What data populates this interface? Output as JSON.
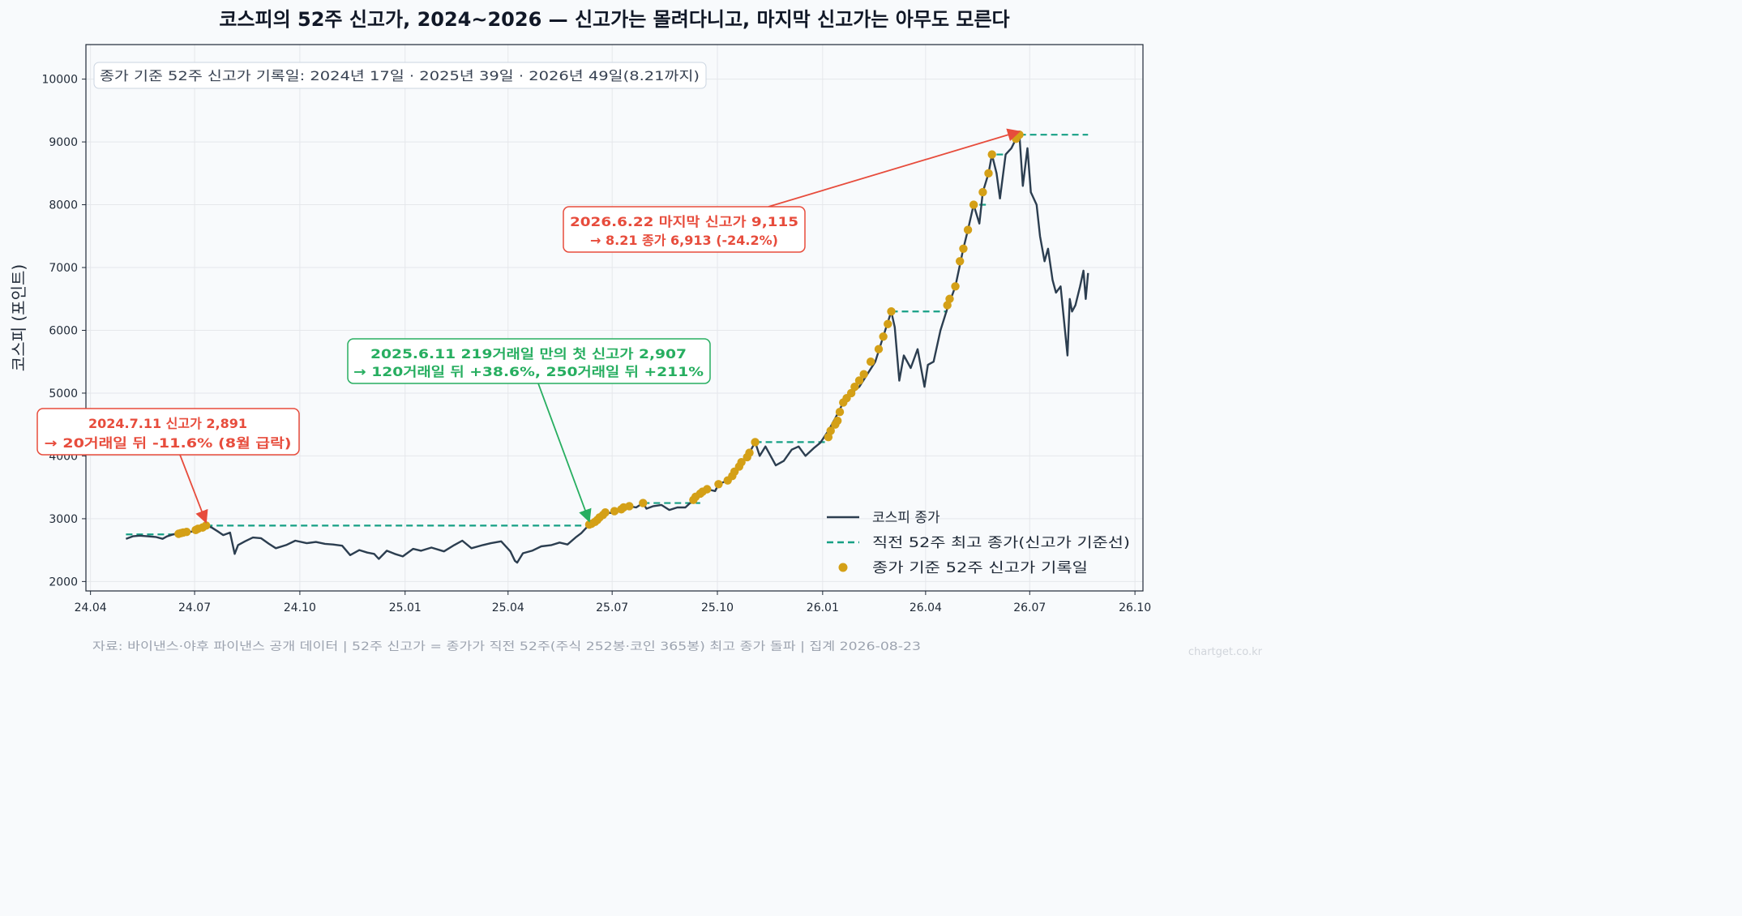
{
  "chart_data": {
    "type": "line",
    "title": "코스피의 52주 신고가, 2024~2026 — 신고가는 몰려다니고, 마지막 신고가는 아무도 모른다",
    "ylabel": "코스피 (포인트)",
    "xlabel": "",
    "info_box": "종가 기준 52주 신고가 기록일: 2024년 17일 · 2025년 39일 · 2026년 49일(8.21까지)",
    "footer": "자료: 바이낸스·야후 파이낸스 공개 데이터 | 52주 신고가 = 종가가 직전 52주(주식 252봉·코인 365봉) 최고 종가 돌파 | 집계 2026-08-23",
    "watermark": "chartget.co.kr",
    "ylim": [
      1850,
      10550
    ],
    "xlim": [
      "2024-03-28",
      "2026-10-08"
    ],
    "grid": true,
    "legend_position": "lower-right",
    "y_ticks": [
      2000,
      3000,
      4000,
      5000,
      6000,
      7000,
      8000,
      9000,
      10000
    ],
    "x_ticks": [
      {
        "date": "2024-04-01",
        "label": "24.04"
      },
      {
        "date": "2024-07-01",
        "label": "24.07"
      },
      {
        "date": "2024-10-01",
        "label": "24.10"
      },
      {
        "date": "2025-01-01",
        "label": "25.01"
      },
      {
        "date": "2025-04-01",
        "label": "25.04"
      },
      {
        "date": "2025-07-01",
        "label": "25.07"
      },
      {
        "date": "2025-10-01",
        "label": "25.10"
      },
      {
        "date": "2026-01-01",
        "label": "26.01"
      },
      {
        "date": "2026-04-01",
        "label": "26.04"
      },
      {
        "date": "2026-07-01",
        "label": "26.07"
      },
      {
        "date": "2026-10-01",
        "label": "26.10"
      }
    ],
    "colors": {
      "close": "#2c3e50",
      "threshold": "#16a085",
      "highs": "#d4a017",
      "red": "#e74c3c",
      "green": "#27ae60",
      "grid": "#e5e7eb"
    },
    "series": [
      {
        "name": "코스피 종가",
        "points": [
          [
            "2024-05-02",
            2680
          ],
          [
            "2024-05-08",
            2720
          ],
          [
            "2024-05-14",
            2730
          ],
          [
            "2024-05-21",
            2720
          ],
          [
            "2024-05-28",
            2710
          ],
          [
            "2024-06-03",
            2680
          ],
          [
            "2024-06-07",
            2720
          ],
          [
            "2024-06-12",
            2750
          ],
          [
            "2024-06-17",
            2770
          ],
          [
            "2024-06-21",
            2780
          ],
          [
            "2024-06-26",
            2790
          ],
          [
            "2024-07-01",
            2800
          ],
          [
            "2024-07-04",
            2830
          ],
          [
            "2024-07-08",
            2860
          ],
          [
            "2024-07-11",
            2891
          ],
          [
            "2024-07-16",
            2860
          ],
          [
            "2024-07-22",
            2790
          ],
          [
            "2024-07-26",
            2740
          ],
          [
            "2024-08-01",
            2780
          ],
          [
            "2024-08-05",
            2440
          ],
          [
            "2024-08-08",
            2580
          ],
          [
            "2024-08-14",
            2640
          ],
          [
            "2024-08-21",
            2700
          ],
          [
            "2024-08-28",
            2690
          ],
          [
            "2024-09-04",
            2600
          ],
          [
            "2024-09-10",
            2530
          ],
          [
            "2024-09-19",
            2580
          ],
          [
            "2024-09-27",
            2650
          ],
          [
            "2024-10-07",
            2610
          ],
          [
            "2024-10-15",
            2630
          ],
          [
            "2024-10-23",
            2600
          ],
          [
            "2024-10-30",
            2590
          ],
          [
            "2024-11-07",
            2570
          ],
          [
            "2024-11-14",
            2420
          ],
          [
            "2024-11-22",
            2500
          ],
          [
            "2024-11-29",
            2460
          ],
          [
            "2024-12-05",
            2440
          ],
          [
            "2024-12-09",
            2360
          ],
          [
            "2024-12-16",
            2490
          ],
          [
            "2024-12-23",
            2440
          ],
          [
            "2024-12-30",
            2400
          ],
          [
            "2025-01-08",
            2520
          ],
          [
            "2025-01-15",
            2490
          ],
          [
            "2025-01-24",
            2540
          ],
          [
            "2025-02-04",
            2480
          ],
          [
            "2025-02-13",
            2580
          ],
          [
            "2025-02-20",
            2650
          ],
          [
            "2025-02-28",
            2530
          ],
          [
            "2025-03-10",
            2580
          ],
          [
            "2025-03-17",
            2610
          ],
          [
            "2025-03-26",
            2640
          ],
          [
            "2025-04-03",
            2480
          ],
          [
            "2025-04-07",
            2330
          ],
          [
            "2025-04-09",
            2300
          ],
          [
            "2025-04-14",
            2450
          ],
          [
            "2025-04-22",
            2490
          ],
          [
            "2025-04-30",
            2560
          ],
          [
            "2025-05-09",
            2580
          ],
          [
            "2025-05-16",
            2620
          ],
          [
            "2025-05-23",
            2590
          ],
          [
            "2025-05-30",
            2700
          ],
          [
            "2025-06-04",
            2770
          ],
          [
            "2025-06-11",
            2907
          ],
          [
            "2025-06-16",
            2950
          ],
          [
            "2025-06-20",
            3020
          ],
          [
            "2025-06-25",
            3100
          ],
          [
            "2025-07-01",
            3090
          ],
          [
            "2025-07-07",
            3120
          ],
          [
            "2025-07-11",
            3180
          ],
          [
            "2025-07-16",
            3200
          ],
          [
            "2025-07-22",
            3180
          ],
          [
            "2025-07-28",
            3250
          ],
          [
            "2025-07-31",
            3160
          ],
          [
            "2025-08-06",
            3200
          ],
          [
            "2025-08-13",
            3220
          ],
          [
            "2025-08-20",
            3140
          ],
          [
            "2025-08-27",
            3180
          ],
          [
            "2025-09-03",
            3180
          ],
          [
            "2025-09-10",
            3300
          ],
          [
            "2025-09-16",
            3400
          ],
          [
            "2025-09-22",
            3470
          ],
          [
            "2025-09-29",
            3440
          ],
          [
            "2025-10-02",
            3550
          ],
          [
            "2025-10-10",
            3610
          ],
          [
            "2025-10-16",
            3750
          ],
          [
            "2025-10-22",
            3900
          ],
          [
            "2025-10-29",
            4050
          ],
          [
            "2025-11-03",
            4220
          ],
          [
            "2025-11-07",
            4000
          ],
          [
            "2025-11-12",
            4150
          ],
          [
            "2025-11-18",
            3950
          ],
          [
            "2025-11-21",
            3850
          ],
          [
            "2025-11-28",
            3920
          ],
          [
            "2025-12-05",
            4100
          ],
          [
            "2025-12-11",
            4150
          ],
          [
            "2025-12-17",
            4000
          ],
          [
            "2025-12-24",
            4120
          ],
          [
            "2025-12-30",
            4210
          ],
          [
            "2026-01-06",
            4400
          ],
          [
            "2026-01-12",
            4600
          ],
          [
            "2026-01-19",
            4850
          ],
          [
            "2026-01-26",
            5000
          ],
          [
            "2026-02-02",
            5100
          ],
          [
            "2026-02-09",
            5300
          ],
          [
            "2026-02-16",
            5500
          ],
          [
            "2026-02-23",
            5900
          ],
          [
            "2026-03-02",
            6300
          ],
          [
            "2026-03-05",
            6050
          ],
          [
            "2026-03-09",
            5200
          ],
          [
            "2026-03-13",
            5600
          ],
          [
            "2026-03-19",
            5400
          ],
          [
            "2026-03-25",
            5700
          ],
          [
            "2026-03-31",
            5100
          ],
          [
            "2026-04-03",
            5450
          ],
          [
            "2026-04-08",
            5500
          ],
          [
            "2026-04-14",
            6000
          ],
          [
            "2026-04-20",
            6350
          ],
          [
            "2026-04-27",
            6700
          ],
          [
            "2026-05-04",
            7300
          ],
          [
            "2026-05-08",
            7600
          ],
          [
            "2026-05-13",
            8000
          ],
          [
            "2026-05-18",
            7700
          ],
          [
            "2026-05-21",
            8200
          ],
          [
            "2026-05-26",
            8500
          ],
          [
            "2026-05-29",
            8800
          ],
          [
            "2026-06-02",
            8500
          ],
          [
            "2026-06-05",
            8100
          ],
          [
            "2026-06-10",
            8800
          ],
          [
            "2026-06-15",
            8900
          ],
          [
            "2026-06-19",
            9050
          ],
          [
            "2026-06-22",
            9115
          ],
          [
            "2026-06-25",
            8300
          ],
          [
            "2026-06-29",
            8900
          ],
          [
            "2026-07-02",
            8200
          ],
          [
            "2026-07-07",
            8000
          ],
          [
            "2026-07-10",
            7500
          ],
          [
            "2026-07-14",
            7100
          ],
          [
            "2026-07-17",
            7300
          ],
          [
            "2026-07-21",
            6800
          ],
          [
            "2026-07-24",
            6600
          ],
          [
            "2026-07-28",
            6700
          ],
          [
            "2026-08-03",
            5600
          ],
          [
            "2026-08-05",
            6500
          ],
          [
            "2026-08-07",
            6300
          ],
          [
            "2026-08-10",
            6400
          ],
          [
            "2026-08-14",
            6700
          ],
          [
            "2026-08-17",
            6950
          ],
          [
            "2026-08-19",
            6500
          ],
          [
            "2026-08-21",
            6913
          ]
        ]
      },
      {
        "name": "직전 52주 최고 종가(신고가 기준선)",
        "style": "dashed",
        "segments": [
          [
            [
              "2024-05-02",
              2750
            ],
            [
              "2024-06-17",
              2750
            ]
          ],
          [
            [
              "2024-07-11",
              2891
            ],
            [
              "2025-06-11",
              2891
            ]
          ],
          [
            [
              "2025-07-28",
              3250
            ],
            [
              "2025-09-16",
              3250
            ]
          ],
          [
            [
              "2025-11-03",
              4220
            ],
            [
              "2026-01-06",
              4220
            ]
          ],
          [
            [
              "2026-03-02",
              6300
            ],
            [
              "2026-04-20",
              6300
            ]
          ],
          [
            [
              "2026-05-18",
              8000
            ],
            [
              "2026-05-26",
              8000
            ]
          ],
          [
            [
              "2026-06-02",
              8800
            ],
            [
              "2026-06-10",
              8800
            ]
          ],
          [
            [
              "2026-06-22",
              9115
            ],
            [
              "2026-08-21",
              9115
            ]
          ]
        ]
      },
      {
        "name": "종가 기준 52주 신고가 기록일",
        "type": "scatter",
        "points": [
          [
            "2024-06-17",
            2760
          ],
          [
            "2024-06-19",
            2770
          ],
          [
            "2024-06-21",
            2780
          ],
          [
            "2024-06-24",
            2790
          ],
          [
            "2024-07-02",
            2820
          ],
          [
            "2024-07-04",
            2840
          ],
          [
            "2024-07-08",
            2860
          ],
          [
            "2024-07-11",
            2891
          ],
          [
            "2025-06-11",
            2907
          ],
          [
            "2025-06-13",
            2920
          ],
          [
            "2025-06-16",
            2950
          ],
          [
            "2025-06-18",
            2980
          ],
          [
            "2025-06-20",
            3020
          ],
          [
            "2025-06-23",
            3060
          ],
          [
            "2025-06-25",
            3100
          ],
          [
            "2025-07-03",
            3120
          ],
          [
            "2025-07-09",
            3150
          ],
          [
            "2025-07-11",
            3180
          ],
          [
            "2025-07-16",
            3200
          ],
          [
            "2025-07-28",
            3250
          ],
          [
            "2025-09-10",
            3300
          ],
          [
            "2025-09-12",
            3350
          ],
          [
            "2025-09-16",
            3400
          ],
          [
            "2025-09-18",
            3430
          ],
          [
            "2025-09-22",
            3470
          ],
          [
            "2025-10-02",
            3550
          ],
          [
            "2025-10-10",
            3610
          ],
          [
            "2025-10-14",
            3680
          ],
          [
            "2025-10-16",
            3750
          ],
          [
            "2025-10-20",
            3830
          ],
          [
            "2025-10-22",
            3900
          ],
          [
            "2025-10-27",
            3980
          ],
          [
            "2025-10-29",
            4050
          ],
          [
            "2025-11-03",
            4220
          ],
          [
            "2026-01-06",
            4300
          ],
          [
            "2026-01-08",
            4400
          ],
          [
            "2026-01-12",
            4500
          ],
          [
            "2026-01-14",
            4560
          ],
          [
            "2026-01-16",
            4700
          ],
          [
            "2026-01-19",
            4850
          ],
          [
            "2026-01-22",
            4920
          ],
          [
            "2026-01-26",
            5000
          ],
          [
            "2026-01-29",
            5100
          ],
          [
            "2026-02-02",
            5200
          ],
          [
            "2026-02-06",
            5300
          ],
          [
            "2026-02-12",
            5500
          ],
          [
            "2026-02-19",
            5700
          ],
          [
            "2026-02-23",
            5900
          ],
          [
            "2026-02-27",
            6100
          ],
          [
            "2026-03-02",
            6300
          ],
          [
            "2026-04-20",
            6400
          ],
          [
            "2026-04-22",
            6500
          ],
          [
            "2026-04-27",
            6700
          ],
          [
            "2026-05-01",
            7100
          ],
          [
            "2026-05-04",
            7300
          ],
          [
            "2026-05-08",
            7600
          ],
          [
            "2026-05-13",
            8000
          ],
          [
            "2026-05-21",
            8200
          ],
          [
            "2026-05-26",
            8500
          ],
          [
            "2026-05-29",
            8800
          ],
          [
            "2026-06-19",
            9050
          ],
          [
            "2026-06-22",
            9115
          ]
        ]
      }
    ],
    "annotations": [
      {
        "lines": [
          "2024.7.11 신고가 2,891",
          "→ 20거래일 뒤 -11.6% (8월 급락)"
        ],
        "target": [
          "2024-07-11",
          2891
        ],
        "color": "red"
      },
      {
        "lines": [
          "2025.6.11 219거래일 만의 첫 신고가 2,907",
          "→ 120거래일 뒤 +38.6%, 250거래일 뒤 +211%"
        ],
        "target": [
          "2025-06-11",
          2907
        ],
        "color": "green"
      },
      {
        "lines": [
          "2026.6.22 마지막 신고가 9,115",
          "→ 8.21 종가 6,913 (-24.2%)"
        ],
        "target": [
          "2026-06-22",
          9115
        ],
        "color": "red"
      }
    ]
  }
}
